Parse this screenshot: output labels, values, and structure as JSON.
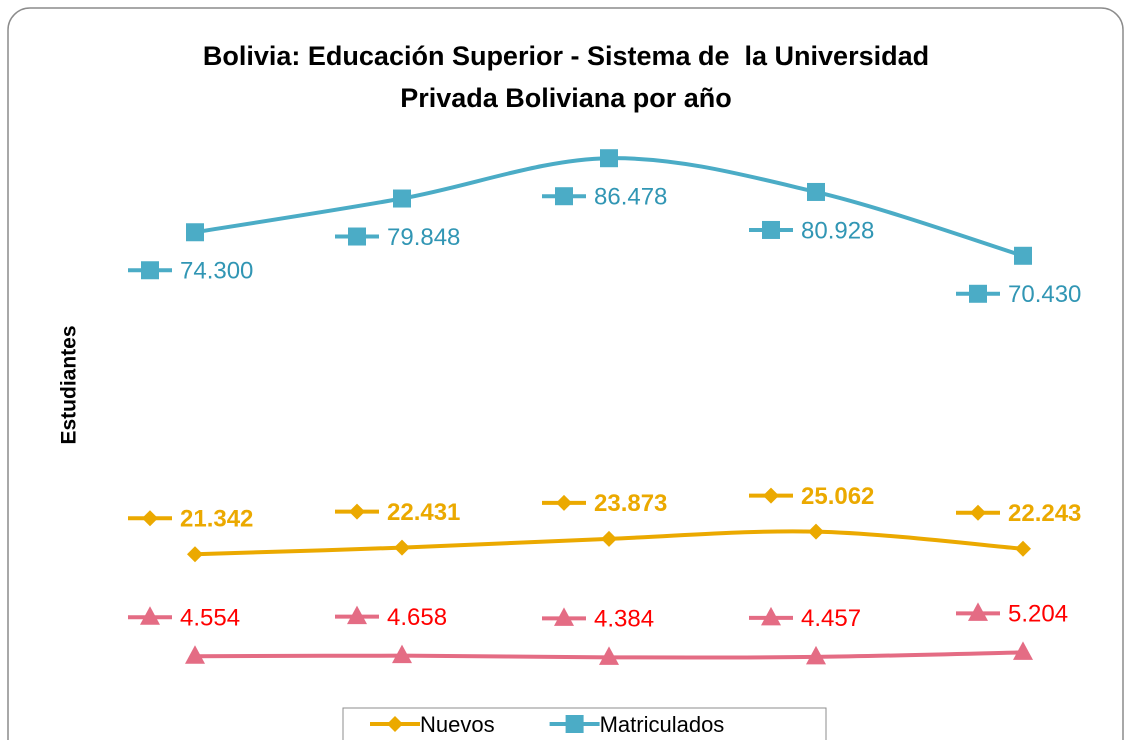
{
  "chart_data": {
    "type": "line",
    "title": [
      "Bolivia: Educación Superior - Sistema de  la Universidad",
      "Privada Boliviana por año"
    ],
    "y_label": "Estudiantes",
    "categories": [
      null,
      null,
      null,
      null,
      null
    ],
    "ylim": [
      0,
      100000
    ],
    "smooth": true,
    "series": [
      {
        "name": "Nuevos",
        "color": "#EBA900",
        "label_color": "#EBA900",
        "marker": "diamond",
        "values": [
          21342,
          22431,
          23873,
          25062,
          22243
        ],
        "value_labels": [
          "21.342",
          "22.431",
          "23.873",
          "25.062",
          "22.243"
        ]
      },
      {
        "name": "Matriculados",
        "color": "#4BACC6",
        "label_color": "#3196B4",
        "marker": "square",
        "values": [
          74300,
          79848,
          86478,
          80928,
          70430
        ],
        "value_labels": [
          "74.300",
          "79.848",
          "86.478",
          "80.928",
          "70.430"
        ]
      },
      {
        "color": "#E46C84",
        "label_color": "#FF0000",
        "marker": "triangle",
        "values": [
          4554,
          4658,
          4384,
          4457,
          5204
        ],
        "value_labels": [
          "4.554",
          "4.658",
          "4.384",
          "4.457",
          "5.204"
        ]
      }
    ]
  }
}
